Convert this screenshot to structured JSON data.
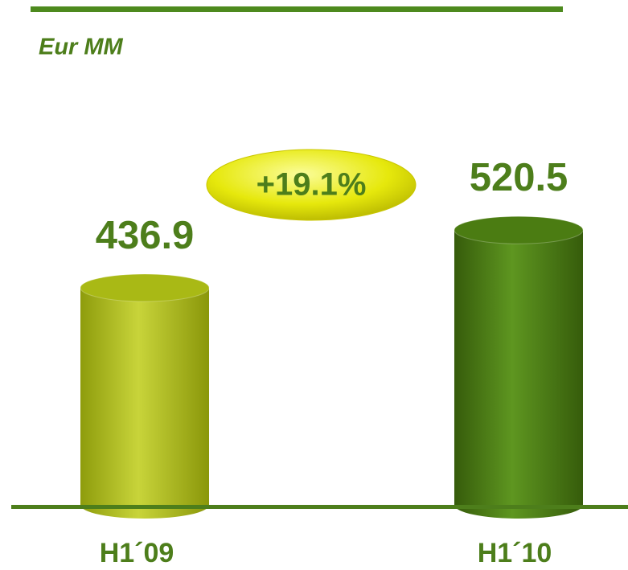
{
  "chart_data": {
    "type": "bar",
    "subtitle": "Eur MM",
    "categories": [
      "H1´09",
      "H1´10"
    ],
    "values": [
      436.9,
      520.5
    ],
    "colors": [
      "#a9b915",
      "#4b7c12"
    ],
    "ylim": [
      120,
      600
    ],
    "annotation": "+19.1%"
  }
}
